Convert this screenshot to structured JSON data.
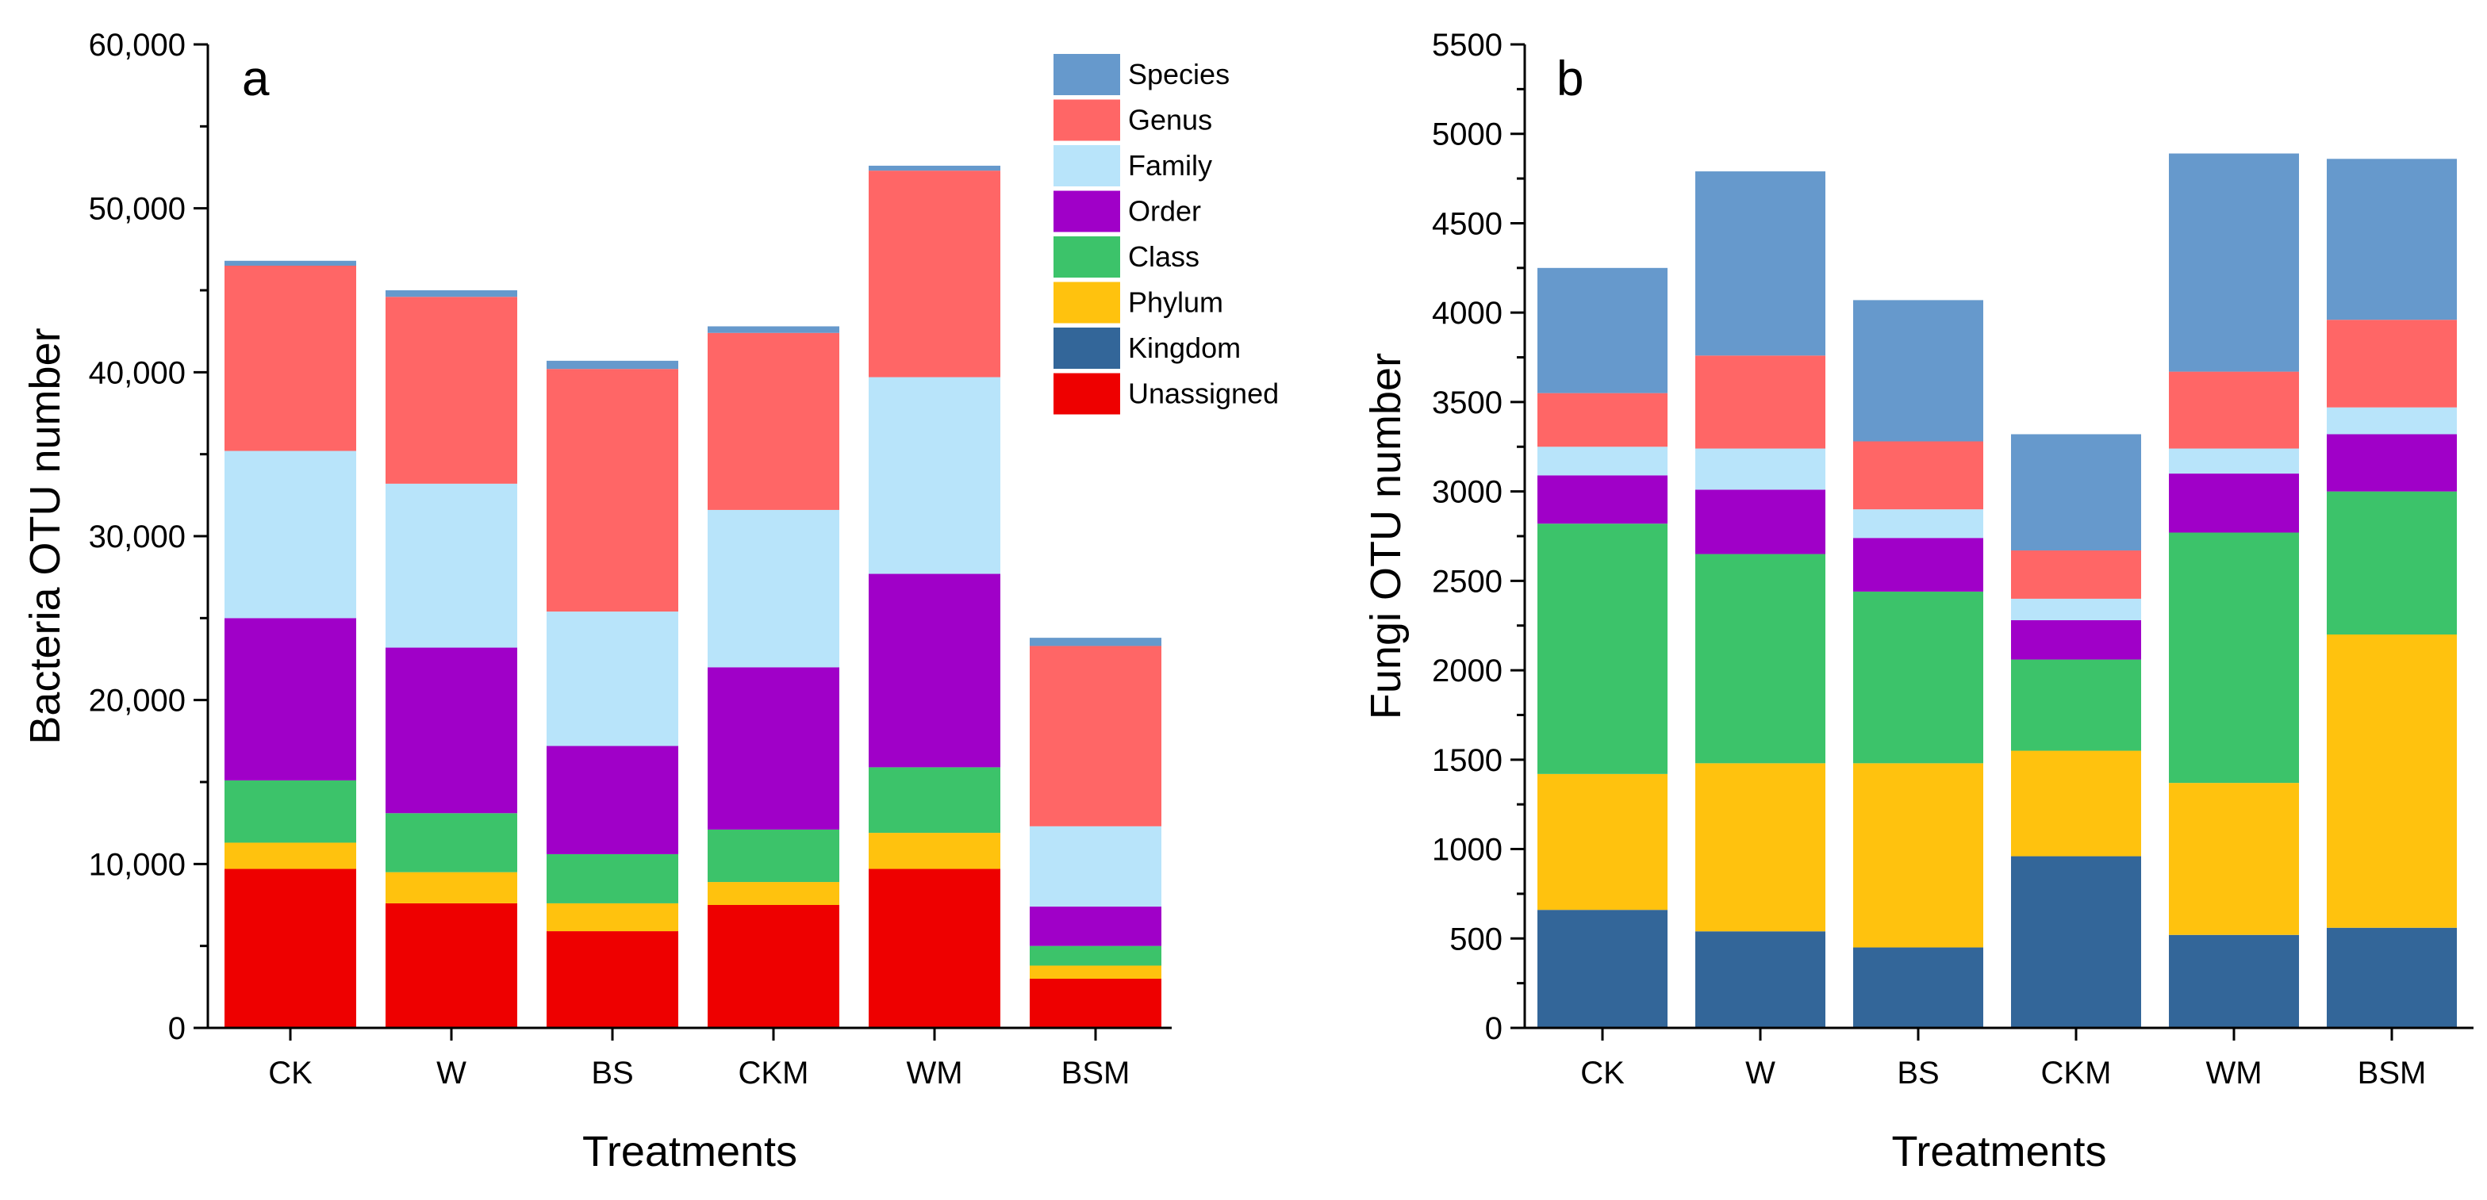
{
  "chart_data": [
    {
      "type": "bar",
      "stacked": true,
      "panel_label": "a",
      "xlabel": "Treatments",
      "ylabel": "Bacteria OTU number",
      "categories": [
        "CK",
        "W",
        "BS",
        "CKM",
        "WM",
        "BSM"
      ],
      "ylim": [
        0,
        60000
      ],
      "yticks": [
        0,
        10000,
        20000,
        30000,
        40000,
        50000,
        60000
      ],
      "ytick_labels": [
        "0",
        "10,000",
        "20,000",
        "30,000",
        "40,000",
        "50,000",
        "60,000"
      ],
      "legend_position": "top-right",
      "legend_order": [
        "Species",
        "Genus",
        "Family",
        "Order",
        "Class",
        "Phylum",
        "Kingdom",
        "Unassigned"
      ],
      "series": [
        {
          "name": "Unassigned",
          "color": "#ee0000",
          "values": [
            9700,
            7600,
            5900,
            7500,
            9700,
            3000
          ]
        },
        {
          "name": "Kingdom",
          "color": "#336699",
          "values": [
            0,
            0,
            0,
            0,
            0,
            0
          ]
        },
        {
          "name": "Phylum",
          "color": "#ffc20e",
          "values": [
            1600,
            1900,
            1700,
            1400,
            2200,
            800
          ]
        },
        {
          "name": "Class",
          "color": "#3cc36a",
          "values": [
            3800,
            3600,
            3000,
            3200,
            4000,
            1200
          ]
        },
        {
          "name": "Order",
          "color": "#a000c8",
          "values": [
            9900,
            10100,
            6600,
            9900,
            11800,
            2400
          ]
        },
        {
          "name": "Family",
          "color": "#b8e4fa",
          "values": [
            10200,
            10000,
            8200,
            9600,
            12000,
            4900
          ]
        },
        {
          "name": "Genus",
          "color": "#ff6666",
          "values": [
            11300,
            11400,
            14800,
            10800,
            12600,
            11000
          ]
        },
        {
          "name": "Species",
          "color": "#6699cc",
          "values": [
            300,
            400,
            500,
            400,
            300,
            500
          ]
        }
      ]
    },
    {
      "type": "bar",
      "stacked": true,
      "panel_label": "b",
      "xlabel": "Treatments",
      "ylabel": "Fungi OTU number",
      "categories": [
        "CK",
        "W",
        "BS",
        "CKM",
        "WM",
        "BSM"
      ],
      "ylim": [
        0,
        5500
      ],
      "yticks": [
        0,
        500,
        1000,
        1500,
        2000,
        2500,
        3000,
        3500,
        4000,
        4500,
        5000,
        5500
      ],
      "ytick_labels": [
        "0",
        "500",
        "1000",
        "1500",
        "2000",
        "2500",
        "3000",
        "3500",
        "4000",
        "4500",
        "5000",
        "5500"
      ],
      "series": [
        {
          "name": "Kingdom",
          "color": "#336699",
          "values": [
            660,
            540,
            450,
            960,
            520,
            560
          ]
        },
        {
          "name": "Phylum",
          "color": "#ffc20e",
          "values": [
            760,
            940,
            1030,
            590,
            850,
            1640
          ]
        },
        {
          "name": "Class",
          "color": "#3cc36a",
          "values": [
            1400,
            1170,
            960,
            510,
            1400,
            800
          ]
        },
        {
          "name": "Order",
          "color": "#a000c8",
          "values": [
            270,
            360,
            300,
            220,
            330,
            320
          ]
        },
        {
          "name": "Family",
          "color": "#b8e4fa",
          "values": [
            160,
            230,
            160,
            120,
            140,
            150
          ]
        },
        {
          "name": "Genus",
          "color": "#ff6666",
          "values": [
            300,
            520,
            380,
            270,
            430,
            490
          ]
        },
        {
          "name": "Species",
          "color": "#6699cc",
          "values": [
            700,
            1030,
            790,
            650,
            1220,
            900
          ]
        }
      ]
    }
  ]
}
